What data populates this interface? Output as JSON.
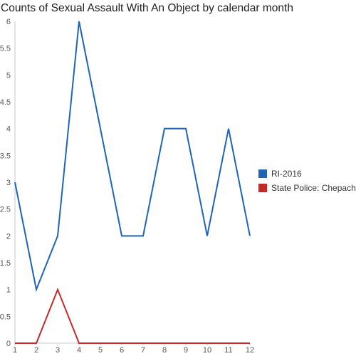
{
  "chart_data": {
    "type": "line",
    "title": "Counts of Sexual Assault With An Object by calendar month",
    "xlabel": "",
    "ylabel": "",
    "categories": [
      "1",
      "2",
      "3",
      "4",
      "5",
      "6",
      "7",
      "8",
      "9",
      "10",
      "11",
      "12"
    ],
    "x": [
      1,
      2,
      3,
      4,
      5,
      6,
      7,
      8,
      9,
      10,
      11,
      12
    ],
    "xlim": [
      1,
      12
    ],
    "ylim": [
      0,
      6
    ],
    "yticks": [
      "0",
      "0.5",
      "1",
      "1.5",
      "2",
      "2.5",
      "3",
      "3.5",
      "4",
      "4.5",
      "5",
      "5.5",
      "6"
    ],
    "grid": false,
    "legend_position": "right",
    "series": [
      {
        "name": "RI-2016",
        "color": "#1f64b8",
        "values": [
          3,
          1,
          2,
          6,
          4,
          2,
          2,
          4,
          4,
          2,
          4,
          2
        ]
      },
      {
        "name": "State Police: Chepachet",
        "color": "#c62828",
        "values": [
          0,
          0,
          1,
          0,
          0,
          0,
          0,
          0,
          0,
          0,
          0,
          0
        ]
      }
    ]
  }
}
